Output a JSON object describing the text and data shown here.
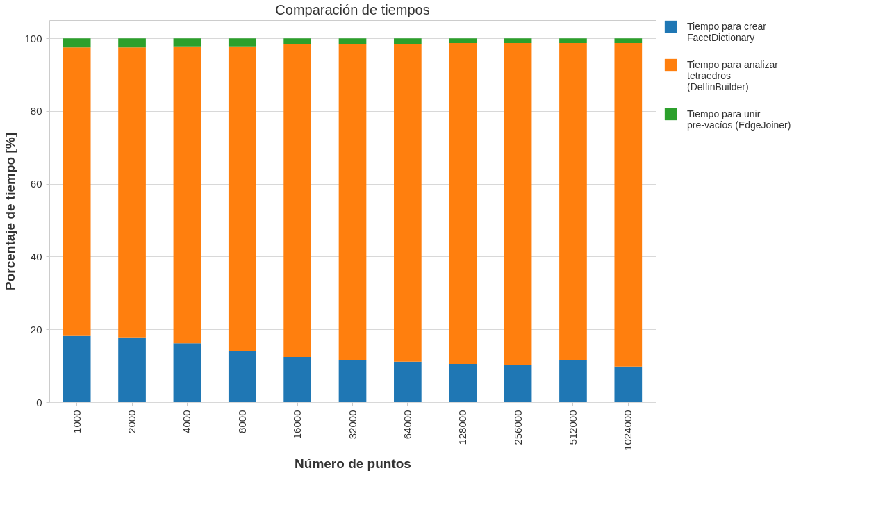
{
  "chart_data": {
    "type": "bar",
    "title": "Comparación de tiempos",
    "xlabel": "Número de puntos",
    "ylabel": "Porcentaje de tiempo [%]",
    "categories": [
      "1000",
      "2000",
      "4000",
      "8000",
      "16000",
      "32000",
      "64000",
      "128000",
      "256000",
      "512000",
      "1024000"
    ],
    "stacked": true,
    "ylim": [
      0,
      105
    ],
    "yticks": [
      0,
      20,
      40,
      60,
      80,
      100
    ],
    "grid": "y",
    "legend": "top right",
    "series": [
      {
        "name": "Tiempo para crear FacetDictionary",
        "color": "#1f77b4",
        "values": [
          18.2,
          17.8,
          16.2,
          14.0,
          12.4,
          11.5,
          11.1,
          10.5,
          10.2,
          11.5,
          9.8
        ]
      },
      {
        "name": "Tiempo para analizar tetraedros (DelfinBuilder)",
        "color": "#ff7f0e",
        "values": [
          79.3,
          79.7,
          81.6,
          83.8,
          86.1,
          87.0,
          87.4,
          88.2,
          88.5,
          87.2,
          88.9
        ]
      },
      {
        "name": "Tiempo para unir pre-vacíos (EdgeJoiner)",
        "color": "#2ca02c",
        "values": [
          2.5,
          2.5,
          2.2,
          2.2,
          1.5,
          1.5,
          1.5,
          1.3,
          1.3,
          1.3,
          1.3
        ]
      }
    ]
  }
}
